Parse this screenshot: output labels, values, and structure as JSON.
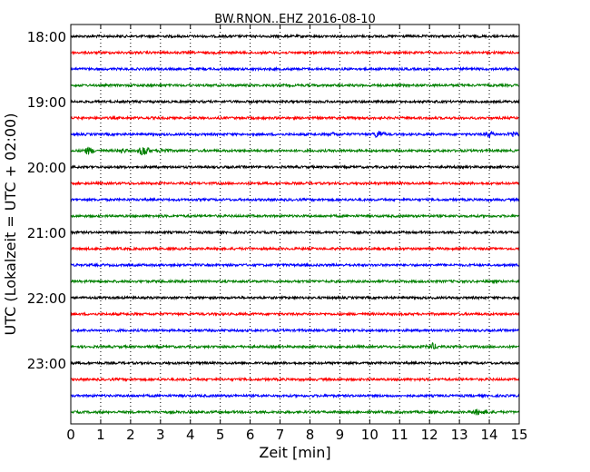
{
  "chart_data": {
    "type": "line",
    "title": "BW.RNON..EHZ 2016-08-10",
    "xlabel": "Zeit  [min]",
    "ylabel": "UTC (Lokalzeit = UTC + 02:00)",
    "xlim": [
      0,
      15
    ],
    "x_ticks": [
      "0",
      "1",
      "2",
      "3",
      "4",
      "5",
      "6",
      "7",
      "8",
      "9",
      "10",
      "11",
      "12",
      "13",
      "14",
      "15"
    ],
    "y_tick_labels": [
      "18:00",
      "19:00",
      "20:00",
      "21:00",
      "22:00",
      "23:00"
    ],
    "grid": "vertical dotted",
    "trace_colors": [
      "#000000",
      "#ff0000",
      "#0000ff",
      "#008000"
    ],
    "traces_per_hour": 4,
    "trace_count": 24,
    "events": [
      {
        "trace": 6,
        "x": [
          8.8,
          10.3,
          14.0,
          14.8
        ],
        "amplitude": [
          1.2,
          3.5,
          2.5,
          2.5
        ]
      },
      {
        "trace": 7,
        "x": [
          0.6,
          1.7,
          2.45,
          3.1
        ],
        "amplitude": [
          3.5,
          2.0,
          5.5,
          2.0
        ]
      },
      {
        "trace": 19,
        "x": [
          12.1
        ],
        "amplitude": [
          3.0
        ]
      },
      {
        "trace": 23,
        "x": [
          13.6,
          13.9
        ],
        "amplitude": [
          2.5,
          1.5
        ]
      }
    ]
  }
}
